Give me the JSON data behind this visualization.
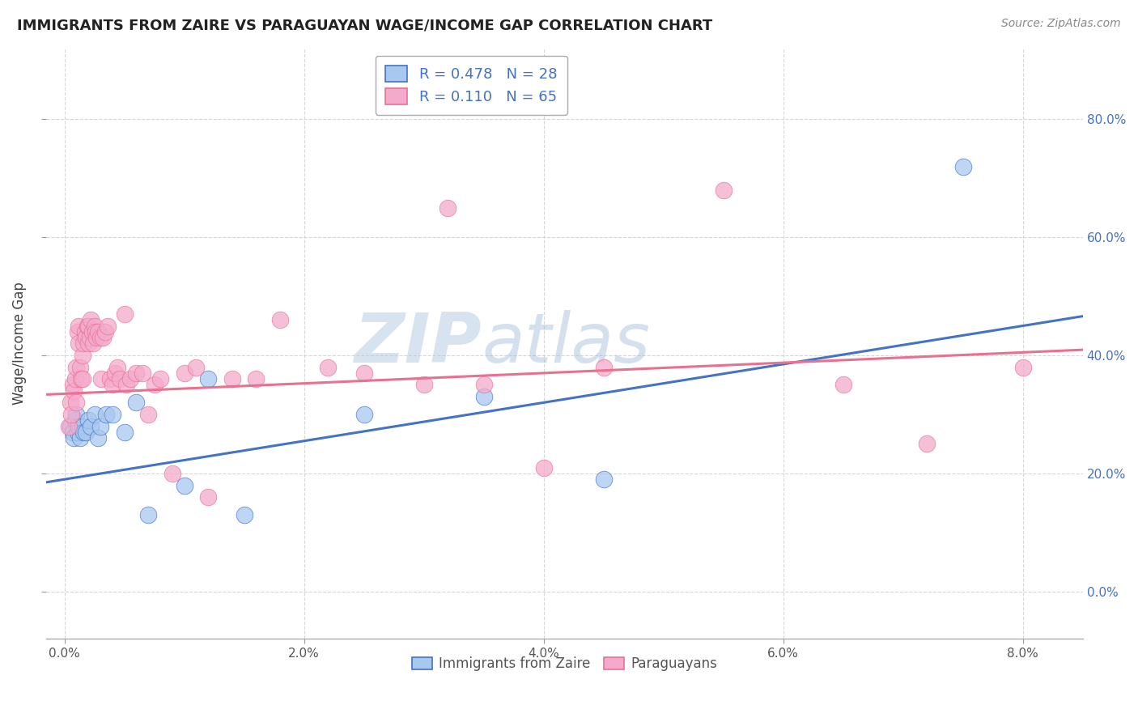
{
  "title": "IMMIGRANTS FROM ZAIRE VS PARAGUAYAN WAGE/INCOME GAP CORRELATION CHART",
  "source": "Source: ZipAtlas.com",
  "ylabel": "Wage/Income Gap",
  "legend_label_blue": "Immigrants from Zaire",
  "legend_label_pink": "Paraguayans",
  "R_blue": 0.478,
  "N_blue": 28,
  "R_pink": 0.11,
  "N_pink": 65,
  "blue_color": "#A8C8F0",
  "pink_color": "#F4AACC",
  "blue_line_color": "#4472C4",
  "pink_line_color": "#E87090",
  "watermark_zip": "ZIP",
  "watermark_atlas": "atlas",
  "blue_x": [
    0.05,
    0.07,
    0.08,
    0.09,
    0.1,
    0.11,
    0.12,
    0.13,
    0.15,
    0.16,
    0.18,
    0.2,
    0.22,
    0.25,
    0.28,
    0.3,
    0.35,
    0.4,
    0.5,
    0.6,
    0.7,
    1.0,
    1.2,
    1.5,
    2.5,
    3.5,
    4.5,
    7.5
  ],
  "blue_y": [
    28,
    27,
    26,
    29,
    30,
    27,
    28,
    26,
    28,
    27,
    27,
    29,
    28,
    30,
    26,
    28,
    30,
    30,
    27,
    32,
    13,
    18,
    36,
    13,
    30,
    33,
    19,
    72
  ],
  "pink_x": [
    0.04,
    0.05,
    0.06,
    0.07,
    0.08,
    0.09,
    0.1,
    0.1,
    0.11,
    0.12,
    0.12,
    0.13,
    0.14,
    0.15,
    0.15,
    0.16,
    0.17,
    0.18,
    0.19,
    0.2,
    0.2,
    0.21,
    0.22,
    0.23,
    0.24,
    0.25,
    0.26,
    0.27,
    0.28,
    0.3,
    0.31,
    0.32,
    0.34,
    0.36,
    0.38,
    0.4,
    0.42,
    0.44,
    0.46,
    0.5,
    0.52,
    0.55,
    0.6,
    0.65,
    0.7,
    0.75,
    0.8,
    0.9,
    1.0,
    1.1,
    1.2,
    1.4,
    1.6,
    1.8,
    2.2,
    2.5,
    3.0,
    3.2,
    3.5,
    4.0,
    4.5,
    5.5,
    6.5,
    7.2,
    8.0
  ],
  "pink_y": [
    28,
    32,
    30,
    35,
    34,
    36,
    38,
    32,
    44,
    42,
    45,
    38,
    36,
    36,
    40,
    42,
    44,
    43,
    45,
    45,
    42,
    43,
    46,
    44,
    42,
    45,
    44,
    43,
    44,
    43,
    36,
    43,
    44,
    45,
    36,
    35,
    37,
    38,
    36,
    47,
    35,
    36,
    37,
    37,
    30,
    35,
    36,
    20,
    37,
    38,
    16,
    36,
    36,
    46,
    38,
    37,
    35,
    65,
    35,
    21,
    38,
    68,
    35,
    25,
    38
  ],
  "xlim_left": -0.15,
  "xlim_right": 8.5,
  "ylim_bottom": -8,
  "ylim_top": 92,
  "xtick_vals": [
    0,
    2,
    4,
    6,
    8
  ],
  "ytick_vals": [
    0,
    20,
    40,
    60,
    80
  ],
  "blue_trend_x0": 0.0,
  "blue_trend_y0": 19.0,
  "blue_trend_x1": 8.0,
  "blue_trend_y1": 45.0,
  "pink_trend_x0": 0.0,
  "pink_trend_y0": 33.5,
  "pink_trend_x1": 8.0,
  "pink_trend_y1": 40.5
}
